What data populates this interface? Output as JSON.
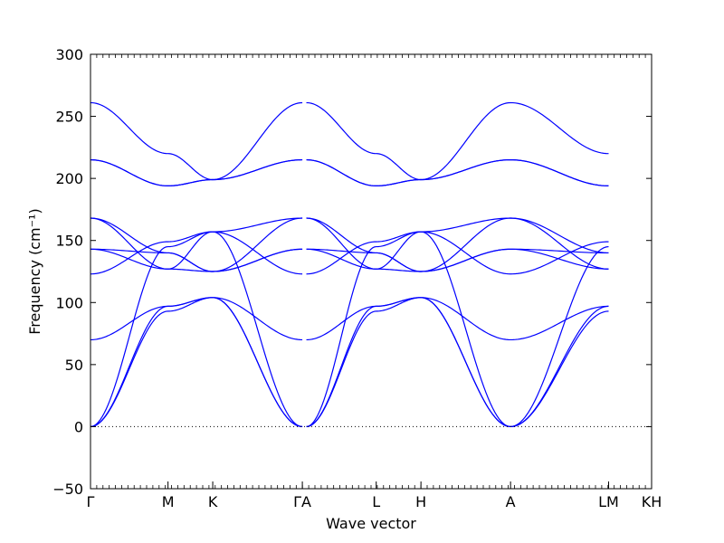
{
  "chart_data": {
    "type": "line",
    "xlabel": "Wave vector",
    "ylabel": "Frequency (cm⁻¹)",
    "ylim": [
      -50,
      300
    ],
    "y_ticks": [
      "−50",
      "0",
      "50",
      "100",
      "150",
      "200",
      "250",
      "300"
    ],
    "y_tick_values": [
      -50,
      0,
      50,
      100,
      150,
      200,
      250,
      300
    ],
    "grid": false,
    "legend": "none",
    "line_color": "#0000ff",
    "zero_line_color": "#000000",
    "path_labels": [
      "Γ",
      "M",
      "K",
      "ΓA",
      "L",
      "H",
      "A",
      "LM",
      "KH"
    ],
    "path_positions": [
      0,
      0.577,
      0.91,
      1.577,
      2.127,
      2.46,
      3.127,
      3.857,
      4.177
    ],
    "path_segments": [
      {
        "from": "Γ",
        "to": "M",
        "x": [
          0,
          0.577
        ]
      },
      {
        "from": "M",
        "to": "K",
        "x": [
          0.577,
          0.91
        ]
      },
      {
        "from": "K",
        "to": "Γ",
        "x": [
          0.91,
          1.577
        ]
      },
      {
        "from": "A",
        "to": "L",
        "x": [
          1.607,
          2.127
        ]
      },
      {
        "from": "L",
        "to": "H",
        "x": [
          2.127,
          2.46
        ]
      },
      {
        "from": "H",
        "to": "A",
        "x": [
          2.46,
          3.127
        ]
      },
      {
        "from": "L",
        "to": "M",
        "x": [
          3.127,
          3.857
        ]
      },
      {
        "from": "K",
        "to": "H",
        "x": [
          4.147,
          4.177
        ]
      }
    ],
    "bands": [
      {
        "name": "band-1",
        "points": [
          [
            0,
            0
          ],
          [
            0.577,
            93
          ],
          [
            0.91,
            104
          ],
          [
            1.577,
            0
          ],
          [
            1.607,
            0
          ],
          [
            2.127,
            93
          ],
          [
            2.46,
            104
          ],
          [
            3.127,
            0
          ],
          [
            3.857,
            93
          ],
          [
            4.177,
            104
          ]
        ]
      },
      {
        "name": "band-2",
        "points": [
          [
            0,
            0
          ],
          [
            0.577,
            97
          ],
          [
            0.91,
            104
          ],
          [
            1.577,
            0
          ],
          [
            1.607,
            0
          ],
          [
            2.127,
            97
          ],
          [
            2.46,
            104
          ],
          [
            3.127,
            0
          ],
          [
            3.857,
            97
          ],
          [
            4.177,
            104
          ]
        ]
      },
      {
        "name": "band-3",
        "points": [
          [
            0,
            0
          ],
          [
            0.577,
            145
          ],
          [
            0.91,
            157
          ],
          [
            1.577,
            0
          ],
          [
            1.607,
            0
          ],
          [
            2.127,
            145
          ],
          [
            2.46,
            157
          ],
          [
            3.127,
            0
          ],
          [
            3.857,
            145
          ],
          [
            4.177,
            157
          ]
        ]
      },
      {
        "name": "band-4",
        "points": [
          [
            0,
            70
          ],
          [
            0.577,
            97
          ],
          [
            0.91,
            104
          ],
          [
            1.577,
            70
          ],
          [
            1.607,
            70
          ],
          [
            2.127,
            97
          ],
          [
            2.46,
            104
          ],
          [
            3.127,
            70
          ],
          [
            3.857,
            97
          ],
          [
            4.177,
            104
          ]
        ]
      },
      {
        "name": "band-5",
        "points": [
          [
            0,
            123
          ],
          [
            0.577,
            149
          ],
          [
            0.91,
            157
          ],
          [
            1.577,
            123
          ],
          [
            1.607,
            123
          ],
          [
            2.127,
            149
          ],
          [
            2.46,
            157
          ],
          [
            3.127,
            123
          ],
          [
            3.857,
            149
          ],
          [
            4.177,
            157
          ]
        ]
      },
      {
        "name": "band-6",
        "points": [
          [
            0,
            143
          ],
          [
            0.577,
            127
          ],
          [
            0.91,
            125
          ],
          [
            1.577,
            143
          ],
          [
            1.607,
            143
          ],
          [
            2.127,
            127
          ],
          [
            2.46,
            125
          ],
          [
            3.127,
            143
          ],
          [
            3.857,
            127
          ],
          [
            4.177,
            126
          ]
        ]
      },
      {
        "name": "band-7",
        "points": [
          [
            0,
            143
          ],
          [
            0.577,
            140
          ],
          [
            0.91,
            125
          ],
          [
            1.577,
            143
          ],
          [
            1.607,
            143
          ],
          [
            2.127,
            140
          ],
          [
            2.46,
            125
          ],
          [
            3.127,
            143
          ],
          [
            3.857,
            140
          ],
          [
            4.177,
            126
          ]
        ]
      },
      {
        "name": "band-8",
        "points": [
          [
            0,
            168
          ],
          [
            0.577,
            140
          ],
          [
            0.91,
            125
          ],
          [
            1.577,
            168
          ],
          [
            1.607,
            168
          ],
          [
            2.127,
            140
          ],
          [
            2.46,
            125
          ],
          [
            3.127,
            168
          ],
          [
            3.857,
            140
          ],
          [
            4.177,
            126
          ]
        ]
      },
      {
        "name": "band-9",
        "points": [
          [
            0,
            168
          ],
          [
            0.577,
            127
          ],
          [
            0.91,
            157
          ],
          [
            1.577,
            168
          ],
          [
            1.607,
            168
          ],
          [
            2.127,
            127
          ],
          [
            2.46,
            157
          ],
          [
            3.127,
            168
          ],
          [
            3.857,
            127
          ],
          [
            4.177,
            157
          ]
        ]
      },
      {
        "name": "band-10",
        "points": [
          [
            0,
            215
          ],
          [
            0.577,
            194
          ],
          [
            0.91,
            199
          ],
          [
            1.577,
            215
          ],
          [
            1.607,
            215
          ],
          [
            2.127,
            194
          ],
          [
            2.46,
            199
          ],
          [
            3.127,
            215
          ],
          [
            3.857,
            194
          ],
          [
            4.177,
            199
          ]
        ]
      },
      {
        "name": "band-11",
        "points": [
          [
            0,
            261
          ],
          [
            0.577,
            220
          ],
          [
            0.91,
            199
          ],
          [
            1.577,
            261
          ],
          [
            1.607,
            261
          ],
          [
            2.127,
            220
          ],
          [
            2.46,
            199
          ],
          [
            3.127,
            261
          ],
          [
            3.857,
            220
          ],
          [
            4.177,
            199
          ]
        ]
      },
      {
        "name": "band-12",
        "points": [
          [
            0,
            215
          ],
          [
            0.577,
            194
          ],
          [
            0.91,
            199
          ],
          [
            1.577,
            215
          ],
          [
            1.607,
            215
          ],
          [
            2.127,
            194
          ],
          [
            2.46,
            199
          ],
          [
            3.127,
            215
          ],
          [
            3.857,
            194
          ],
          [
            4.177,
            199
          ]
        ]
      }
    ]
  }
}
